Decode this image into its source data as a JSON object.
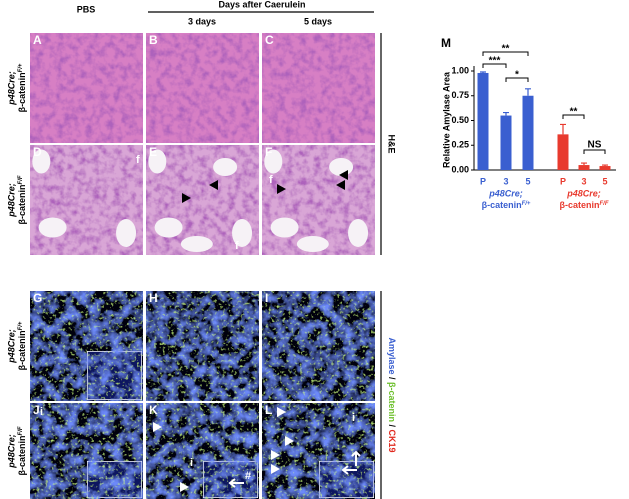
{
  "figure": {
    "column_header": "Days after Caerulein",
    "columns": [
      "PBS",
      "3 days",
      "5 days"
    ],
    "row_labels": [
      {
        "line1": "p48Cre;",
        "line2": "β-catenin",
        "sup": "F/+"
      },
      {
        "line1": "p48Cre;",
        "line2": "β-catenin",
        "sup": "F/F"
      },
      {
        "line1": "p48Cre;",
        "line2": "β-catenin",
        "sup": "F/+"
      },
      {
        "line1": "p48Cre;",
        "line2": "β-catenin",
        "sup": "F/F"
      }
    ],
    "panels": [
      "A",
      "B",
      "C",
      "D",
      "E",
      "F",
      "G",
      "H",
      "I",
      "J",
      "K",
      "L"
    ],
    "stain_he": "H&E",
    "stain_if": [
      "Amylase",
      "/",
      "β-catenin",
      "/",
      "CK19"
    ],
    "marks": {
      "fat": "f",
      "islet": "i",
      "duct": "#"
    }
  },
  "chart_data": {
    "type": "bar",
    "panel": "M",
    "y_label": "Relative Amylase Area",
    "categories": [
      "P",
      "3",
      "5"
    ],
    "series": [
      {
        "name_parts": [
          "p48Cre;",
          "β-catenin",
          "F/+"
        ],
        "color": "#3a5fd0",
        "values": [
          0.98,
          0.55,
          0.75
        ],
        "errors": [
          0.01,
          0.03,
          0.07
        ]
      },
      {
        "name_parts": [
          "p48Cre;",
          "β-catenin",
          "F/F"
        ],
        "color": "#e83a2e",
        "values": [
          0.36,
          0.05,
          0.04
        ],
        "errors": [
          0.1,
          0.02,
          0.01
        ]
      }
    ],
    "ylim": [
      0,
      1
    ],
    "yticks": [
      {
        "value": 0,
        "label": "0.00"
      },
      {
        "value": 0.25,
        "label": "0.25"
      },
      {
        "value": 0.5,
        "label": "0.50"
      },
      {
        "value": 0.75,
        "label": "0.75"
      },
      {
        "value": 1,
        "label": "1.00"
      }
    ],
    "significance": [
      "**",
      "***",
      "*",
      "**",
      "NS"
    ]
  }
}
